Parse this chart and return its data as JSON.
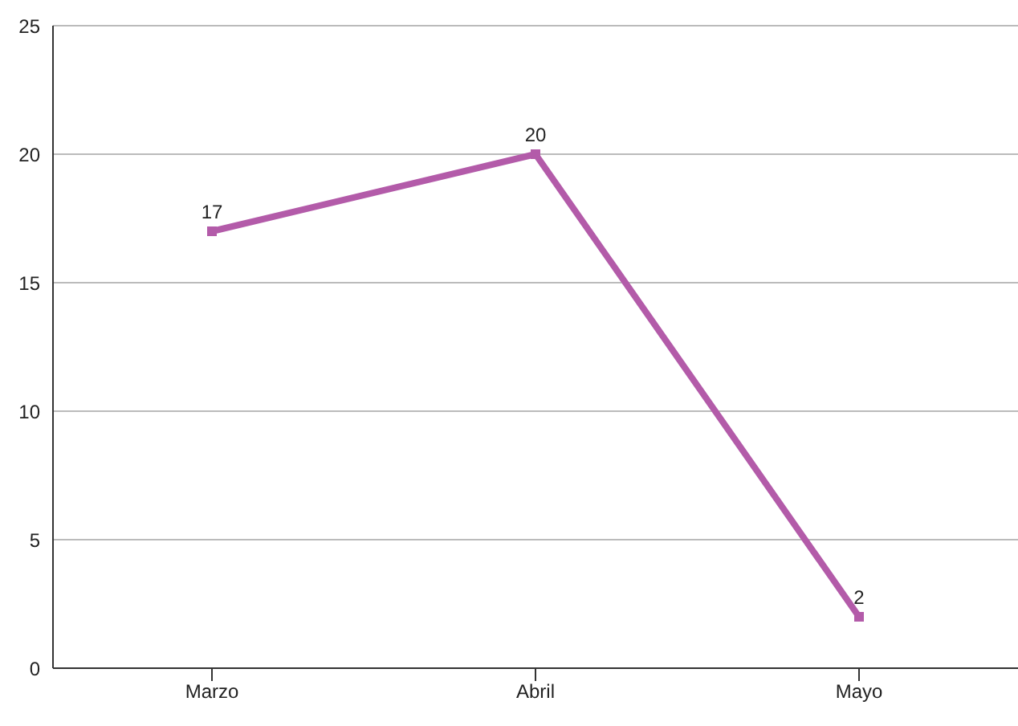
{
  "chart_data": {
    "type": "line",
    "categories": [
      "Marzo",
      "Abril",
      "Mayo"
    ],
    "series": [
      {
        "color": "#b35ba9",
        "values": [
          17,
          20,
          2
        ]
      }
    ],
    "ylim": [
      0,
      25
    ],
    "yticks": [
      0,
      5,
      10,
      15,
      20,
      25
    ],
    "grid": "y",
    "marker": "square",
    "data_labels": true
  }
}
